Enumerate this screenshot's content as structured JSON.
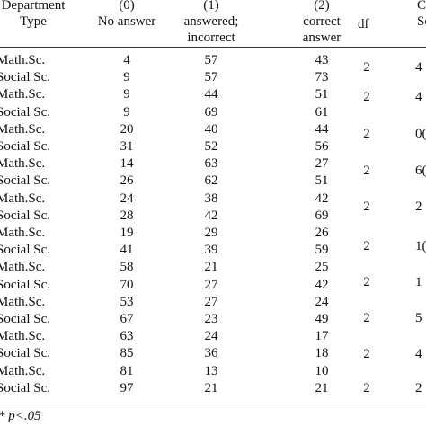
{
  "header": {
    "dept_line1": "Department",
    "dept_line2": "Type",
    "col0_line1": "(0)",
    "col0_line2": "No answer",
    "col1_line1": "(1)",
    "col1_line2": "answered;",
    "col1_line3": "incorrect",
    "col2_line1": "(2)",
    "col2_line2": "correct",
    "col2_line3": "answer",
    "df": "df",
    "last_line1": "C",
    "last_line2": "Sc"
  },
  "rows": [
    {
      "dept": "Math.Sc.",
      "c0": "4",
      "c1": "57",
      "c2": "43"
    },
    {
      "dept": "Social Sc.",
      "c0": "9",
      "c1": "57",
      "c2": "73"
    },
    {
      "dept": "Math.Sc.",
      "c0": "9",
      "c1": "44",
      "c2": "51"
    },
    {
      "dept": "Social Sc.",
      "c0": "9",
      "c1": "69",
      "c2": "61"
    },
    {
      "dept": "Math.Sc.",
      "c0": "20",
      "c1": "40",
      "c2": "44"
    },
    {
      "dept": "Social Sc.",
      "c0": "31",
      "c1": "52",
      "c2": "56"
    },
    {
      "dept": "Math.Sc.",
      "c0": "14",
      "c1": "63",
      "c2": "27"
    },
    {
      "dept": "Social Sc.",
      "c0": "26",
      "c1": "62",
      "c2": "51"
    },
    {
      "dept": "Math.Sc.",
      "c0": "24",
      "c1": "38",
      "c2": "42"
    },
    {
      "dept": "Social Sc.",
      "c0": "28",
      "c1": "42",
      "c2": "69"
    },
    {
      "dept": "Math.Sc.",
      "c0": "19",
      "c1": "29",
      "c2": "26"
    },
    {
      "dept": "Social Sc.",
      "c0": "41",
      "c1": "39",
      "c2": "59"
    },
    {
      "dept": "Math.Sc.",
      "c0": "58",
      "c1": "21",
      "c2": "25"
    },
    {
      "dept": "Social Sc.",
      "c0": "70",
      "c1": "27",
      "c2": "42"
    },
    {
      "dept": "Math.Sc.",
      "c0": "53",
      "c1": "27",
      "c2": "24"
    },
    {
      "dept": "Social Sc.",
      "c0": "67",
      "c1": "23",
      "c2": "49"
    },
    {
      "dept": "Math.Sc.",
      "c0": "63",
      "c1": "24",
      "c2": "17"
    },
    {
      "dept": "Social Sc.",
      "c0": "85",
      "c1": "36",
      "c2": "18"
    },
    {
      "dept": "Math.Sc.",
      "c0": "81",
      "c1": "13",
      "c2": "10"
    },
    {
      "dept": "Social Sc.",
      "c0": "97",
      "c1": "21",
      "c2": "21"
    }
  ],
  "df_values": [
    "2",
    "2",
    "2",
    "2",
    "2",
    "2",
    "2",
    "2",
    "2",
    "2"
  ],
  "last_values": [
    "4",
    "4",
    "0(",
    "6(",
    "2",
    "1(",
    "1",
    "5",
    "4",
    "2"
  ],
  "footnote": "* p<.05"
}
